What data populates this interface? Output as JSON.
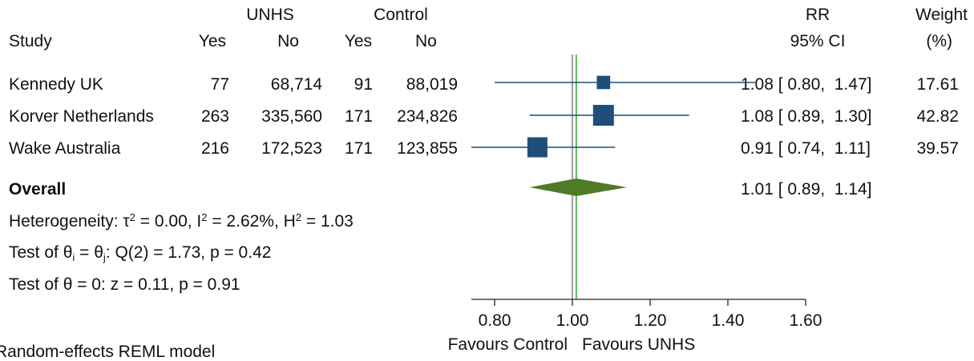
{
  "chart_data": {
    "type": "forest",
    "header": {
      "group1": "UNHS",
      "group2": "Control",
      "study_col": "Study",
      "yes": "Yes",
      "no": "No",
      "rr_col": "RR",
      "ci_col": "95% CI",
      "weight_col": "Weight",
      "weight_unit": "(%)"
    },
    "studies": [
      {
        "name": "Kennedy UK",
        "unhs_yes": "77",
        "unhs_no": "68,714",
        "control_yes": "91",
        "control_no": "88,019",
        "rr": 1.08,
        "lower": 0.8,
        "upper": 1.47,
        "weight": 17.61,
        "ci_text": "1.08 [ 0.80,  1.47]",
        "weight_text": "17.61"
      },
      {
        "name": "Korver Netherlands",
        "unhs_yes": "263",
        "unhs_no": "335,560",
        "control_yes": "171",
        "control_no": "234,826",
        "rr": 1.08,
        "lower": 0.89,
        "upper": 1.3,
        "weight": 42.82,
        "ci_text": "1.08 [ 0.89,  1.30]",
        "weight_text": "42.82"
      },
      {
        "name": "Wake Australia",
        "unhs_yes": "216",
        "unhs_no": "172,523",
        "control_yes": "171",
        "control_no": "123,855",
        "rr": 0.91,
        "lower": 0.74,
        "upper": 1.11,
        "weight": 39.57,
        "ci_text": "0.91 [ 0.74,  1.11]",
        "weight_text": "39.57"
      }
    ],
    "overall": {
      "label": "Overall",
      "rr": 1.01,
      "lower": 0.89,
      "upper": 1.14,
      "ci_text": "1.01 [ 0.89,  1.14]"
    },
    "stats": {
      "heterogeneity_prefix": "Heterogeneity: τ",
      "heterogeneity_a": " = 0.00, I",
      "heterogeneity_b": " = 2.62%, H",
      "heterogeneity_c": " = 1.03",
      "sq": "2",
      "test1_prefix": "Test of θ",
      "test1_sub_i": "i",
      "test1_mid": " = θ",
      "test1_sub_j": "j",
      "test1_suffix": ": Q(2) = 1.73, p = 0.42",
      "test2": "Test of θ = 0: z = 0.11, p = 0.91"
    },
    "x_axis": {
      "ticks": [
        0.8,
        1.0,
        1.2,
        1.4,
        1.6
      ],
      "tick_labels": [
        "0.80",
        "1.00",
        "1.20",
        "1.40",
        "1.60"
      ],
      "range": [
        0.74,
        1.6
      ]
    },
    "null_line": 1.0,
    "overall_line": 1.01,
    "favours_left": "Favours Control",
    "favours_right": "Favours UNHS",
    "model_note": "Random-effects REML model",
    "colors": {
      "square": "#1f4e79",
      "ci_line": "#1f4e79",
      "diamond": "#4f7a28",
      "null_line": "#808080",
      "overall_line": "#2ca02c"
    }
  }
}
